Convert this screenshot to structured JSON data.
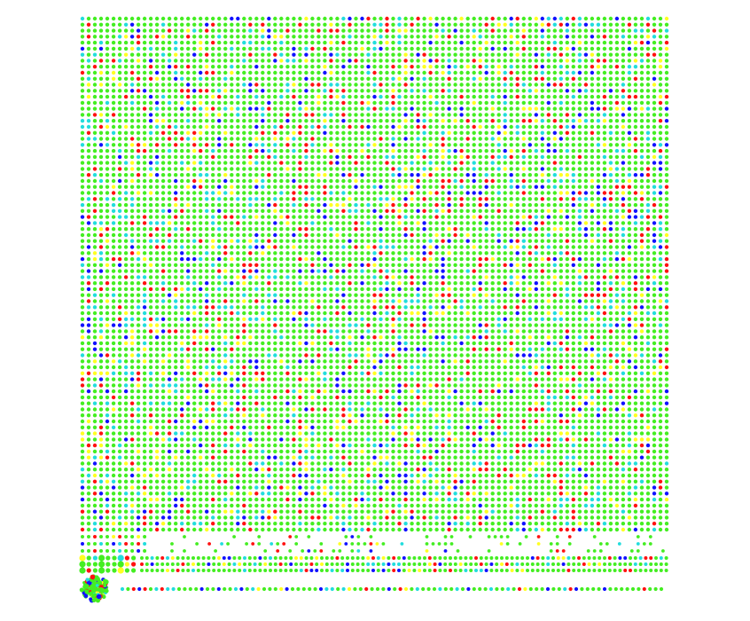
{
  "palette": {
    "green": "#44ee22",
    "yellow": "#ffff22",
    "cyan": "#22dddd",
    "red": "#ff1111",
    "blue": "#1111ff"
  },
  "grid": {
    "columns": 95,
    "rows": 86,
    "color_mix": {
      "green": 0.7,
      "cyan": 0.09,
      "yellow": 0.07,
      "red": 0.08,
      "blue": 0.06
    }
  },
  "bottom_strips": {
    "row_count": 6,
    "bottom_line_count": 1,
    "cluster_count": 1
  }
}
